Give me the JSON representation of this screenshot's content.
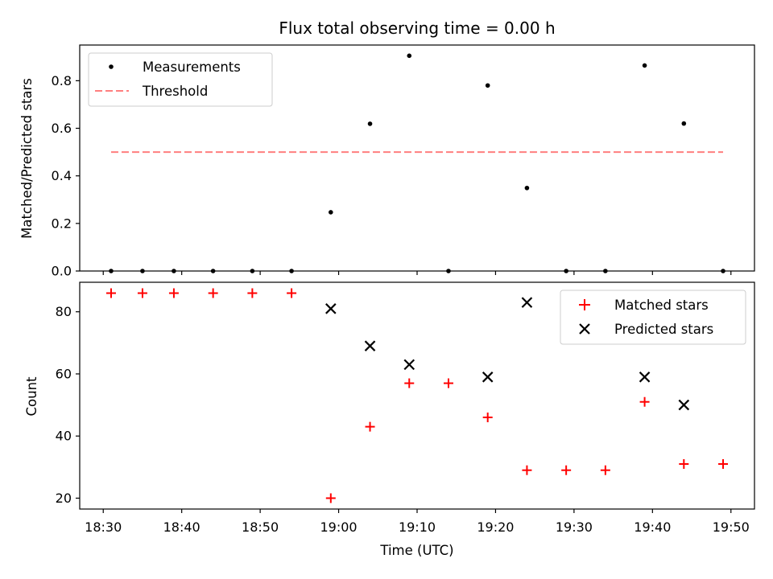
{
  "chart_data": {
    "title": "Flux total observing time = 0.00 h",
    "xlabel": "Time (UTC)",
    "x_ticks": [
      "18:30",
      "18:40",
      "18:50",
      "19:00",
      "19:10",
      "19:20",
      "19:30",
      "19:40",
      "19:50"
    ],
    "x_range": [
      "18:27",
      "19:53"
    ],
    "panels": [
      {
        "type": "scatter",
        "ylabel": "Matched/Predicted stars",
        "ylim": [
          0,
          0.95
        ],
        "y_ticks": [
          "0.0",
          "0.2",
          "0.4",
          "0.6",
          "0.8"
        ],
        "legend_position": "top-left",
        "series": [
          {
            "name": "Measurements",
            "marker": "dot",
            "color": "#000000",
            "x": [
              "18:31",
              "18:35",
              "18:39",
              "18:44",
              "18:49",
              "18:54",
              "18:59",
              "19:04",
              "19:09",
              "19:14",
              "19:19",
              "19:24",
              "19:29",
              "19:34",
              "19:39",
              "19:44",
              "19:49"
            ],
            "y": [
              0.0,
              0.0,
              0.0,
              0.0,
              0.0,
              0.0,
              0.247,
              0.619,
              0.905,
              0.0,
              0.78,
              0.349,
              0.0,
              0.0,
              0.864,
              0.62,
              0.0
            ]
          }
        ],
        "threshold": {
          "name": "Threshold",
          "value": 0.5,
          "x_start": "18:31",
          "x_end": "19:49",
          "color": "#ff7f7f",
          "style": "dashed"
        }
      },
      {
        "type": "scatter",
        "ylabel": "Count",
        "ylim": [
          16.5,
          89.5
        ],
        "y_ticks": [
          "20",
          "40",
          "60",
          "80"
        ],
        "legend_position": "top-right",
        "series": [
          {
            "name": "Matched stars",
            "marker": "plus",
            "color": "#ff0000",
            "x": [
              "18:31",
              "18:35",
              "18:39",
              "18:44",
              "18:49",
              "18:54",
              "18:59",
              "19:04",
              "19:09",
              "19:14",
              "19:19",
              "19:24",
              "19:29",
              "19:34",
              "19:39",
              "19:44",
              "19:49"
            ],
            "y": [
              86,
              86,
              86,
              86,
              86,
              86,
              20,
              43,
              57,
              57,
              46,
              29,
              29,
              29,
              51,
              31,
              31
            ]
          },
          {
            "name": "Predicted stars",
            "marker": "x",
            "color": "#000000",
            "x": [
              "18:59",
              "19:04",
              "19:09",
              "19:19",
              "19:24",
              "19:39",
              "19:44"
            ],
            "y": [
              81,
              69,
              63,
              59,
              83,
              59,
              50
            ]
          }
        ]
      }
    ]
  }
}
